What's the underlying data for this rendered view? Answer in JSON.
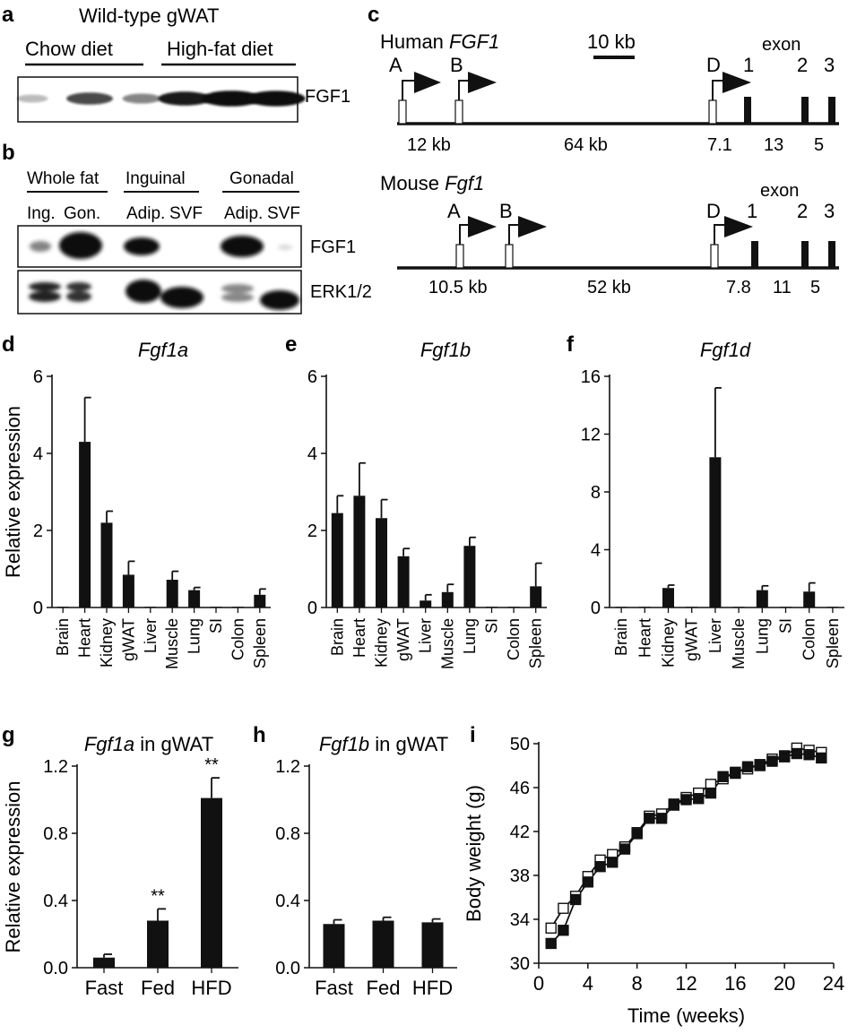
{
  "panel_letters": {
    "a": "a",
    "b": "b",
    "c": "c",
    "d": "d",
    "e": "e",
    "f": "f",
    "g": "g",
    "h": "h",
    "i": "i"
  },
  "panel_a": {
    "title": "Wild-type gWAT",
    "group_left": "Chow diet",
    "group_right": "High-fat diet",
    "band_label": "FGF1",
    "band_intensity": [
      0.08,
      0.55,
      0.3,
      0.75,
      0.95,
      0.92
    ]
  },
  "panel_b": {
    "groups": [
      "Whole fat",
      "Inguinal",
      "Gonadal"
    ],
    "lanes": [
      "Ing.",
      "Gon.",
      "Adip.",
      "SVF",
      "Adip.",
      "SVF"
    ],
    "blot_top_label": "FGF1",
    "blot_bottom_label": "ERK1/2"
  },
  "panel_c": {
    "human_title_prefix": "Human ",
    "human_title_gene": "FGF1",
    "mouse_title_prefix": "Mouse ",
    "mouse_title_gene": "Fgf1",
    "scale_bar": "10 kb",
    "exon_word": "exon",
    "promoters": [
      "A",
      "B",
      "D"
    ],
    "exons": [
      "1",
      "2",
      "3"
    ],
    "human_distances": [
      "12 kb",
      "64 kb",
      "7.1",
      "13",
      "5"
    ],
    "mouse_distances": [
      "10.5 kb",
      "52 kb",
      "7.8",
      "11",
      "5"
    ]
  },
  "chart_data": [
    {
      "panel": "d",
      "type": "bar",
      "title": "Fgf1a",
      "ylabel": "Relative expression",
      "categories": [
        "Brain",
        "Heart",
        "Kidney",
        "gWAT",
        "Liver",
        "Muscle",
        "Lung",
        "SI",
        "Colon",
        "Spleen"
      ],
      "values": [
        0.02,
        4.3,
        2.2,
        0.85,
        0.02,
        0.72,
        0.45,
        0.02,
        0.02,
        0.33
      ],
      "errors": [
        0,
        1.15,
        0.3,
        0.35,
        0,
        0.22,
        0.07,
        0,
        0,
        0.15
      ],
      "ylim": [
        0,
        6
      ],
      "yticks": [
        0,
        2,
        4,
        6
      ]
    },
    {
      "panel": "e",
      "type": "bar",
      "title": "Fgf1b",
      "ylabel": "",
      "categories": [
        "Brain",
        "Heart",
        "Kidney",
        "gWAT",
        "Liver",
        "Muscle",
        "Lung",
        "SI",
        "Colon",
        "Spleen"
      ],
      "values": [
        2.45,
        2.9,
        2.32,
        1.33,
        0.18,
        0.4,
        1.6,
        0.02,
        0.02,
        0.55
      ],
      "errors": [
        0.45,
        0.85,
        0.48,
        0.2,
        0.15,
        0.2,
        0.22,
        0,
        0,
        0.6
      ],
      "ylim": [
        0,
        6
      ],
      "yticks": [
        0,
        2,
        4,
        6
      ]
    },
    {
      "panel": "f",
      "type": "bar",
      "title": "Fgf1d",
      "ylabel": "",
      "categories": [
        "Brain",
        "Heart",
        "Kidney",
        "gWAT",
        "Liver",
        "Muscle",
        "Lung",
        "SI",
        "Colon",
        "Spleen"
      ],
      "values": [
        0.05,
        0.05,
        1.35,
        0.05,
        10.4,
        0.05,
        1.2,
        0.05,
        1.1,
        0.05
      ],
      "errors": [
        0,
        0,
        0.2,
        0,
        4.8,
        0,
        0.3,
        0,
        0.6,
        0
      ],
      "ylim": [
        0,
        16
      ],
      "yticks": [
        0,
        4,
        8,
        12,
        16
      ]
    },
    {
      "panel": "g",
      "type": "bar",
      "title_gene": "Fgf1a",
      "title_rest": " in gWAT",
      "ylabel": "Relative expression",
      "categories": [
        "Fast",
        "Fed",
        "HFD"
      ],
      "values": [
        0.06,
        0.28,
        1.01
      ],
      "errors": [
        0.02,
        0.07,
        0.12
      ],
      "significance": [
        "",
        "**",
        "**"
      ],
      "ylim": [
        0,
        1.2
      ],
      "yticks": [
        "0.0",
        "0.4",
        "0.8",
        "1.2"
      ]
    },
    {
      "panel": "h",
      "type": "bar",
      "title_gene": "Fgf1b",
      "title_rest": " in gWAT",
      "ylabel": "",
      "categories": [
        "Fast",
        "Fed",
        "HFD"
      ],
      "values": [
        0.26,
        0.28,
        0.27
      ],
      "errors": [
        0.025,
        0.02,
        0.02
      ],
      "ylim": [
        0,
        1.2
      ],
      "yticks": [
        "0.0",
        "0.4",
        "0.8",
        "1.2"
      ]
    },
    {
      "panel": "i",
      "type": "line",
      "xlabel": "Time (weeks)",
      "ylabel": "Body weight (g)",
      "xlim": [
        0,
        24
      ],
      "ylim": [
        30,
        50
      ],
      "xticks": [
        0,
        4,
        8,
        12,
        16,
        20,
        24
      ],
      "yticks": [
        30,
        34,
        38,
        42,
        46,
        50
      ],
      "series": [
        {
          "marker": "open-square",
          "x": [
            1,
            2,
            3,
            4,
            5,
            6,
            7,
            8,
            9,
            10,
            11,
            12,
            13,
            14,
            15,
            16,
            17,
            18,
            19,
            20,
            21,
            22,
            23
          ],
          "y": [
            33.2,
            35.0,
            36.1,
            37.9,
            39.4,
            39.9,
            40.6,
            41.9,
            43.4,
            43.6,
            44.5,
            45.1,
            45.5,
            46.3,
            46.8,
            47.4,
            47.7,
            48.1,
            48.6,
            48.9,
            49.6,
            49.4,
            49.2
          ]
        },
        {
          "marker": "filled-square",
          "x": [
            1,
            2,
            3,
            4,
            5,
            6,
            7,
            8,
            9,
            10,
            11,
            12,
            13,
            14,
            15,
            16,
            17,
            18,
            19,
            20,
            21,
            22,
            23
          ],
          "y": [
            31.8,
            33.0,
            35.8,
            37.4,
            38.8,
            39.2,
            40.4,
            41.8,
            43.2,
            43.2,
            44.4,
            44.9,
            45.0,
            45.5,
            47.0,
            47.3,
            47.9,
            48.0,
            48.4,
            48.8,
            49.1,
            49.0,
            48.7
          ]
        }
      ]
    }
  ]
}
